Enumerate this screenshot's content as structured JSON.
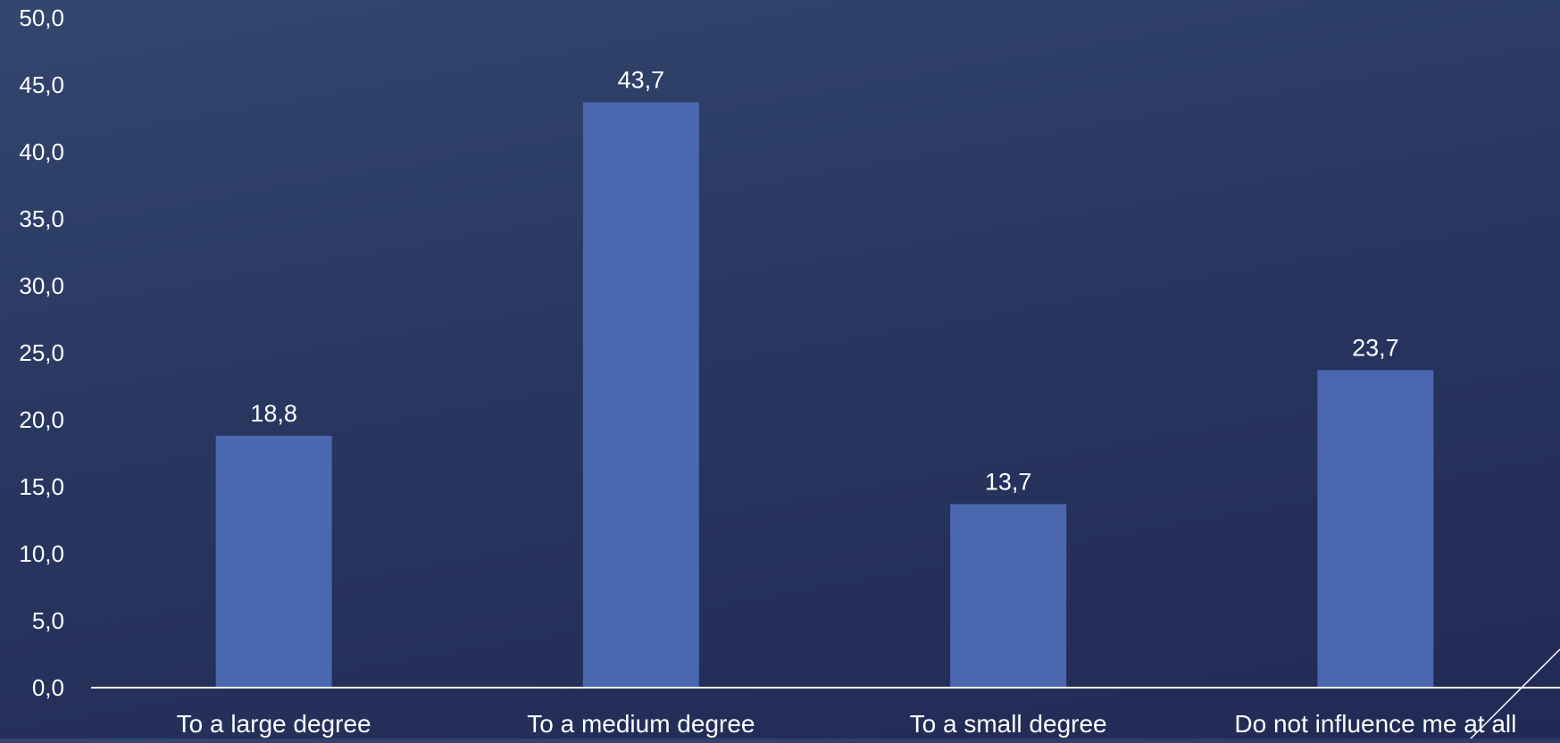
{
  "chart_data": {
    "type": "bar",
    "categories": [
      "To a large degree",
      "To a medium degree",
      "To a small degree",
      "Do not influence me at all"
    ],
    "values": [
      18.8,
      43.7,
      13.7,
      23.7
    ],
    "value_labels": [
      "18,8",
      "43,7",
      "13,7",
      "23,7"
    ],
    "title": "",
    "xlabel": "",
    "ylabel": "",
    "ylim": [
      0,
      50
    ],
    "y_ticks": [
      "0,0",
      "5,0",
      "10,0",
      "15,0",
      "20,0",
      "25,0",
      "30,0",
      "35,0",
      "40,0",
      "45,0",
      "50,0"
    ],
    "grid": false,
    "legend": "none",
    "colors": {
      "bar": "#4a67b0",
      "axis": "#ffffff",
      "text": "#ffffff",
      "background_top": "#33466e",
      "background_bottom": "#212a55"
    }
  }
}
